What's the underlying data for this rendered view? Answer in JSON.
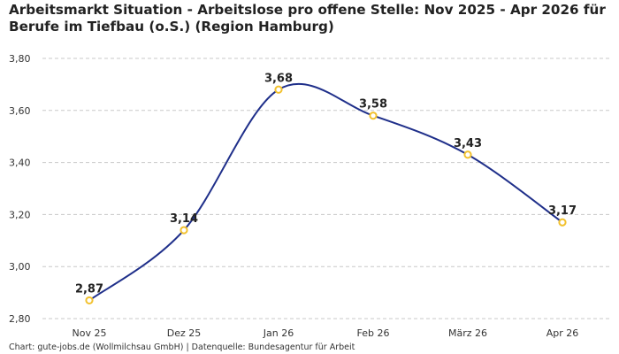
{
  "chart_data": {
    "type": "line",
    "title": "Arbeitsmarkt Situation - Arbeitslose pro offene Stelle: Nov 2025 - Apr 2026 für Berufe im Tiefbau (o.S.) (Region Hamburg)",
    "categories": [
      "Nov 25",
      "Dez 25",
      "Jan 26",
      "Feb 26",
      "März 26",
      "Apr 26"
    ],
    "values": [
      2.87,
      3.14,
      3.68,
      3.58,
      3.43,
      3.17
    ],
    "data_labels": [
      "2,87",
      "3,14",
      "3,68",
      "3,58",
      "3,43",
      "3,17"
    ],
    "y_ticks": [
      2.8,
      3.0,
      3.2,
      3.4,
      3.6,
      3.8
    ],
    "y_tick_labels": [
      "2,80",
      "3,00",
      "3,20",
      "3,40",
      "3,60",
      "3,80"
    ],
    "ylim": [
      2.8,
      3.8
    ],
    "grid": true,
    "smooth": true,
    "line_color": "#1f2f8a",
    "marker_color": "#f2c12e"
  },
  "footer": "Chart: gute-jobs.de (Wollmilchsau GmbH) | Datenquelle: Bundesagentur für Arbeit"
}
